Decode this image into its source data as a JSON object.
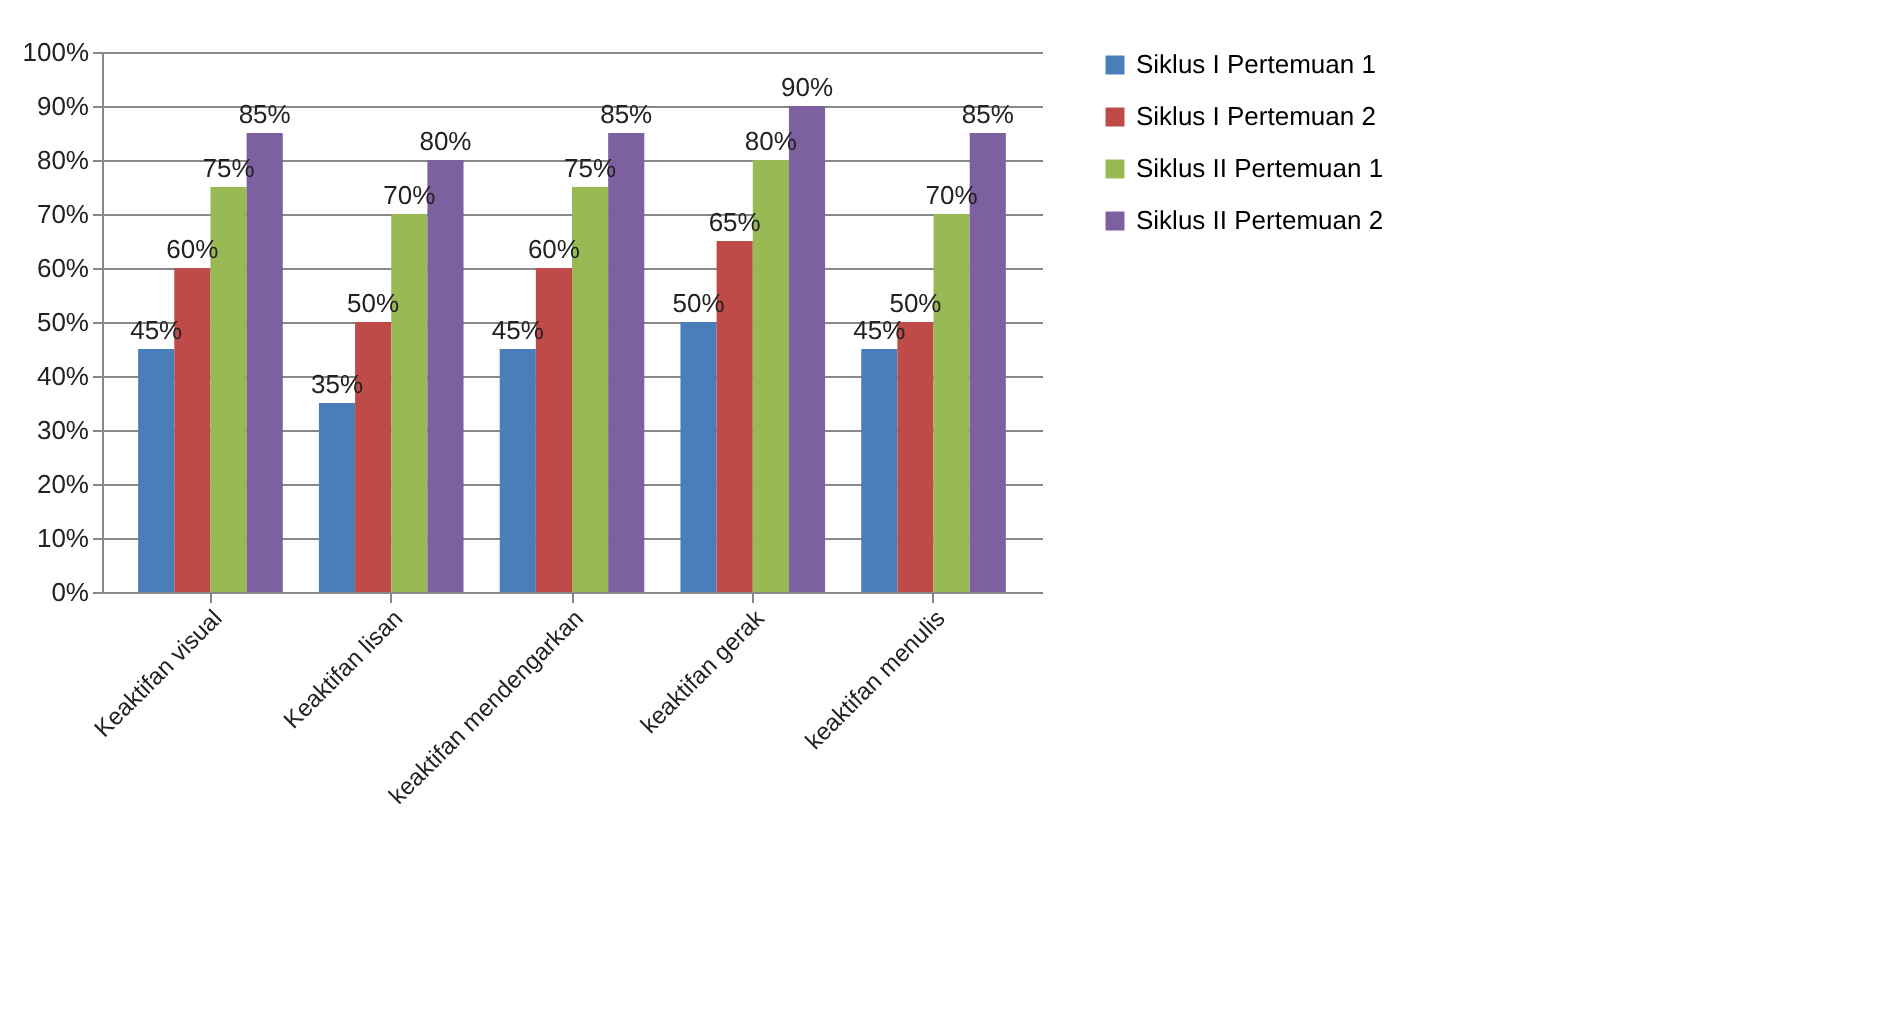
{
  "chart_data": {
    "type": "bar",
    "categories": [
      "Keaktifan visual",
      "Keaktifan lisan",
      "keaktifan mendengarkan",
      "keaktifan gerak",
      "keaktifan menulis"
    ],
    "series": [
      {
        "name": "Siklus I Pertemuan 1",
        "color": "#4a7ebb",
        "values": [
          45,
          35,
          45,
          50,
          45
        ],
        "value_labels": [
          "45%",
          "35%",
          "45%",
          "50%",
          "45%"
        ]
      },
      {
        "name": "Siklus I Pertemuan 2",
        "color": "#be4b48",
        "values": [
          60,
          50,
          60,
          65,
          50
        ],
        "value_labels": [
          "60%",
          "50%",
          "60%",
          "65%",
          "50%"
        ]
      },
      {
        "name": "Siklus II Pertemuan 1",
        "color": "#98b954",
        "values": [
          75,
          70,
          75,
          80,
          70
        ],
        "value_labels": [
          "75%",
          "70%",
          "75%",
          "80%",
          "70%"
        ]
      },
      {
        "name": "Siklus II Pertemuan 2",
        "color": "#7d60a0",
        "values": [
          85,
          80,
          85,
          90,
          85
        ],
        "value_labels": [
          "85%",
          "80%",
          "85%",
          "90%",
          "85%"
        ]
      }
    ],
    "ylim": [
      0,
      100
    ],
    "yticks": [
      {
        "value": 0,
        "label": "0%"
      },
      {
        "value": 10,
        "label": "10%"
      },
      {
        "value": 20,
        "label": "20%"
      },
      {
        "value": 30,
        "label": "30%"
      },
      {
        "value": 40,
        "label": "40%"
      },
      {
        "value": 50,
        "label": "50%"
      },
      {
        "value": 60,
        "label": "60%"
      },
      {
        "value": 70,
        "label": "70%"
      },
      {
        "value": 80,
        "label": "80%"
      },
      {
        "value": 90,
        "label": "90%"
      },
      {
        "value": 100,
        "label": "100%"
      }
    ],
    "grid": "y",
    "legend": "right"
  }
}
